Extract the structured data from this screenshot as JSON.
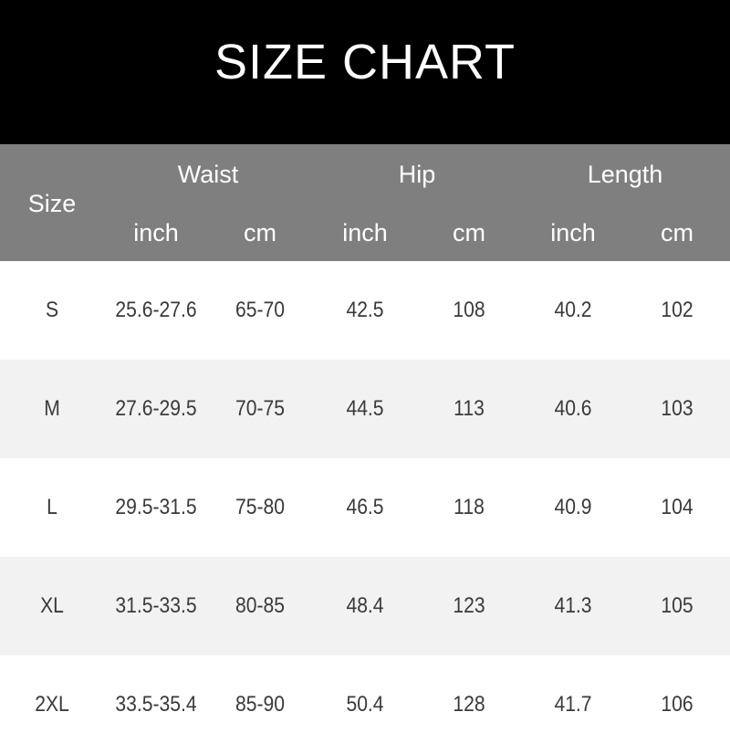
{
  "title": "SIZE CHART",
  "colors": {
    "title_bg": "#000000",
    "header_bg": "#7f7f7f",
    "alt_row_bg": "#f2f2f2",
    "text": "#3a3a3a"
  },
  "chart_data": {
    "type": "table",
    "title": "SIZE CHART",
    "size_header": "Size",
    "groups": [
      "Waist",
      "Hip",
      "Length"
    ],
    "units": [
      "inch",
      "cm",
      "inch",
      "cm",
      "inch",
      "cm"
    ],
    "rows": [
      [
        "S",
        "25.6-27.6",
        "65-70",
        "42.5",
        "108",
        "40.2",
        "102"
      ],
      [
        "M",
        "27.6-29.5",
        "70-75",
        "44.5",
        "113",
        "40.6",
        "103"
      ],
      [
        "L",
        "29.5-31.5",
        "75-80",
        "46.5",
        "118",
        "40.9",
        "104"
      ],
      [
        "XL",
        "31.5-33.5",
        "80-85",
        "48.4",
        "123",
        "41.3",
        "105"
      ],
      [
        "2XL",
        "33.5-35.4",
        "85-90",
        "50.4",
        "128",
        "41.7",
        "106"
      ]
    ]
  }
}
